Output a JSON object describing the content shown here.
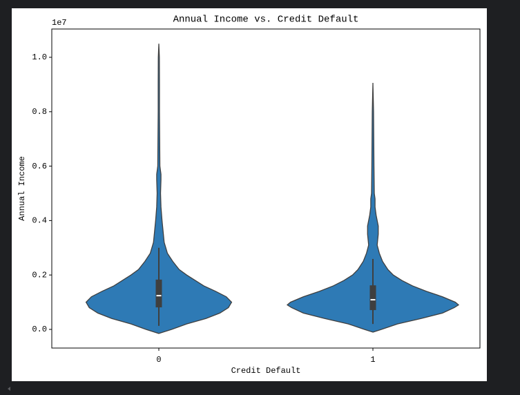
{
  "chart_data": {
    "type": "violin",
    "title": "Annual Income vs. Credit Default",
    "x_label": "Credit Default",
    "y_label": "Annual Income",
    "y_offset_label": "1e7",
    "categories": [
      "0",
      "1"
    ],
    "color": "#2e7ab5",
    "ylim": [
      -0.0685,
      1.104
    ],
    "yticks": [
      {
        "value": 0,
        "label": "0.0"
      },
      {
        "value": 0.2,
        "label": "0.2"
      },
      {
        "value": 0.4,
        "label": "0.4"
      },
      {
        "value": 0.6,
        "label": "0.6"
      },
      {
        "value": 0.8,
        "label": "0.8"
      },
      {
        "value": 1.0,
        "label": "1.0"
      }
    ],
    "violins": [
      {
        "grid": [
          -0.015,
          0.0,
          0.02,
          0.04,
          0.06,
          0.08,
          0.1,
          0.12,
          0.14,
          0.16,
          0.18,
          0.2,
          0.22,
          0.25,
          0.28,
          0.32,
          0.36,
          0.4,
          0.45,
          0.5,
          0.55,
          0.57,
          0.6,
          0.7,
          0.8,
          0.9,
          1.0,
          1.05
        ],
        "density": [
          0,
          0.12,
          0.26,
          0.44,
          0.57,
          0.65,
          0.68,
          0.63,
          0.53,
          0.42,
          0.34,
          0.26,
          0.19,
          0.13,
          0.08,
          0.05,
          0.04,
          0.03,
          0.02,
          0.016,
          0.02,
          0.02,
          0.01,
          0.008,
          0.006,
          0.006,
          0.005,
          0
        ],
        "whiskers": [
          0.013,
          0.3
        ],
        "quartiles": [
          0.081,
          0.183
        ],
        "median": 0.124
      },
      {
        "grid": [
          -0.01,
          0.0,
          0.02,
          0.04,
          0.06,
          0.08,
          0.09,
          0.1,
          0.12,
          0.14,
          0.16,
          0.18,
          0.2,
          0.22,
          0.25,
          0.28,
          0.31,
          0.35,
          0.38,
          0.42,
          0.45,
          0.48,
          0.5,
          0.6,
          0.7,
          0.8,
          0.906
        ],
        "density": [
          0,
          0.08,
          0.23,
          0.45,
          0.65,
          0.76,
          0.8,
          0.77,
          0.65,
          0.5,
          0.37,
          0.27,
          0.19,
          0.14,
          0.09,
          0.06,
          0.04,
          0.05,
          0.05,
          0.03,
          0.02,
          0.02,
          0.013,
          0.01,
          0.008,
          0.006,
          0
        ],
        "whiskers": [
          0.02,
          0.259
        ],
        "quartiles": [
          0.071,
          0.162
        ],
        "median": 0.109
      }
    ]
  }
}
